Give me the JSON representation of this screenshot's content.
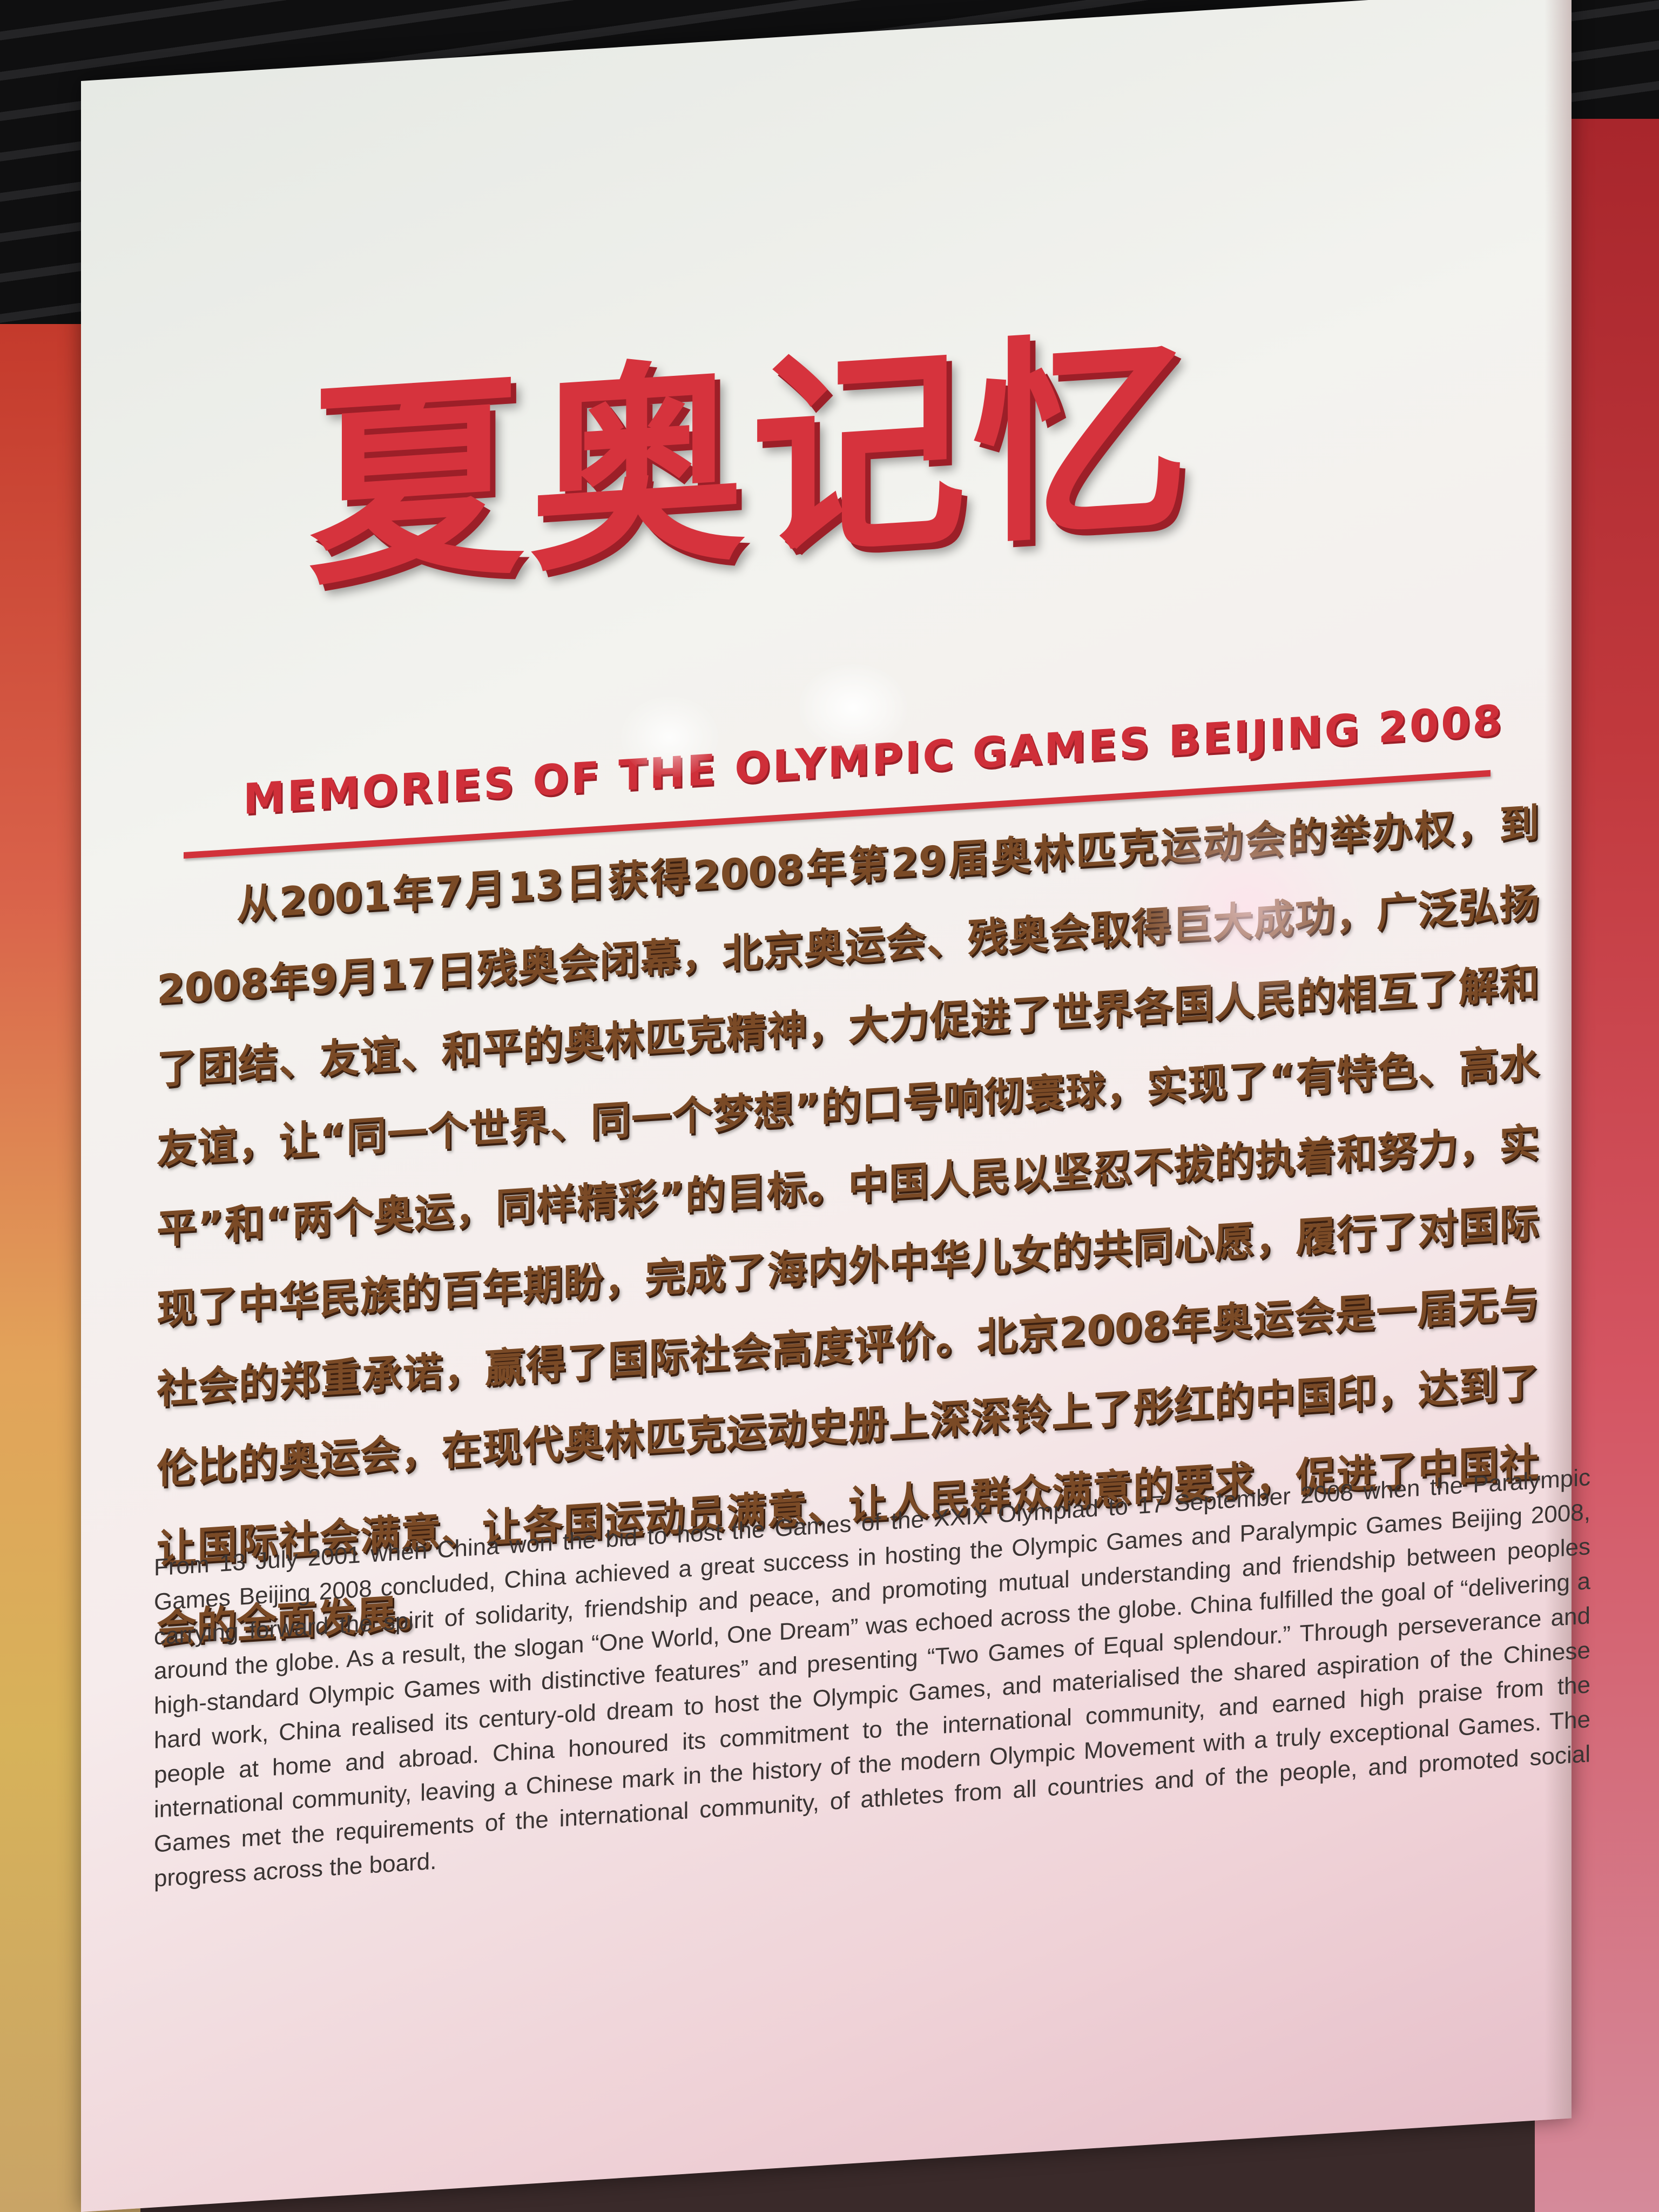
{
  "sign": {
    "title_cn": "夏奥记忆",
    "title_en": "MEMORIES OF THE OLYMPIC GAMES BEIJING 2008",
    "body_cn": "从2001年7月13日获得2008年第29届奥林匹克运动会的举办权，到2008年9月17日残奥会闭幕，北京奥运会、残奥会取得巨大成功，广泛弘扬了团结、友谊、和平的奥林匹克精神，大力促进了世界各国人民的相互了解和友谊，让“同一个世界、同一个梦想”的口号响彻寰球，实现了“有特色、高水平”和“两个奥运，同样精彩”的目标。中国人民以坚忍不拔的执着和努力，实现了中华民族的百年期盼，完成了海内外中华儿女的共同心愿，履行了对国际社会的郑重承诺，赢得了国际社会高度评价。北京2008年奥运会是一届无与伦比的奥运会，在现代奥林匹克运动史册上深深铃上了彤红的中国印，达到了让国际社会满意、让各国运动员满意、让人民群众满意的要求，促进了中国社会的全面发展。",
    "body_en": "From 13 July 2001 when China won the bid to host the Games of the XXIX Olympiad to 17 September 2008 when the Paralympic Games Beijing 2008 concluded, China achieved a great success in hosting the Olympic Games and Paralympic Games Beijing 2008, carrying forward the spirit of solidarity, friendship and peace, and promoting mutual understanding and friendship between peoples around the globe. As a result, the slogan “One World, One Dream” was echoed across the globe. China fulfilled the goal of “delivering a high-standard Olympic Games with distinctive features” and presenting “Two Games of Equal splendour.” Through perseverance and hard work, China realised its century-old dream to host the Olympic Games, and materialised the shared aspiration of the Chinese people at home and abroad. China honoured its commitment to the international community, and earned high praise from the international community, leaving a Chinese mark in the history of the modern Olympic Movement with a truly exceptional Games. The Games met the requirements of the international community, of athletes from all countries and of the people, and promoted social progress across the board."
  },
  "colors": {
    "title_red": "#d6333d",
    "body_brown": "#7a4a26",
    "panel": "#f3f3ef"
  }
}
